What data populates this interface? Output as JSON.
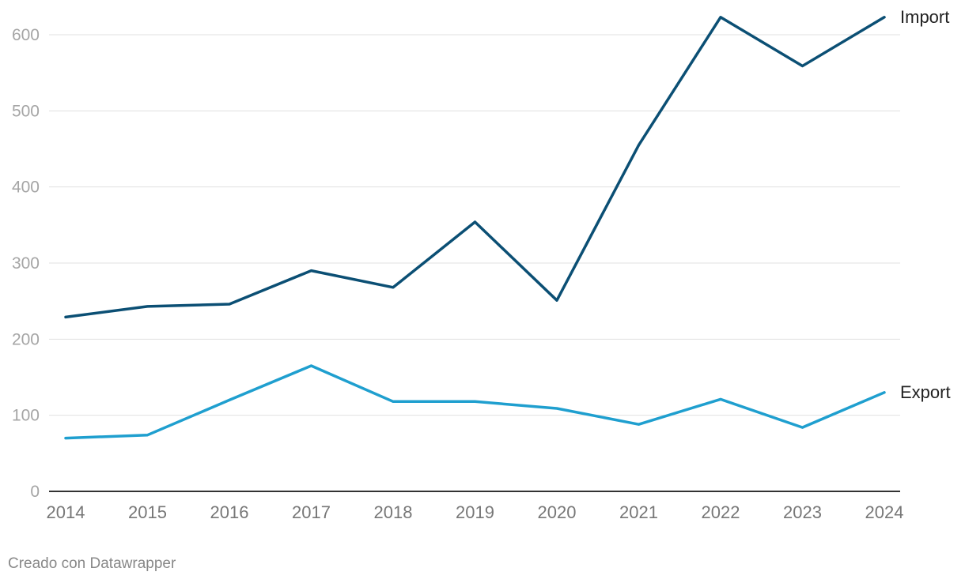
{
  "chart_data": {
    "type": "line",
    "x": [
      "2014",
      "2015",
      "2016",
      "2017",
      "2018",
      "2019",
      "2020",
      "2021",
      "2022",
      "2023",
      "2024"
    ],
    "series": [
      {
        "name": "Import",
        "color": "#0b4f74",
        "values": [
          229,
          243,
          246,
          290,
          268,
          354,
          251,
          455,
          623,
          559,
          623
        ]
      },
      {
        "name": "Export",
        "color": "#1f9fcf",
        "values": [
          70,
          74,
          120,
          165,
          118,
          118,
          109,
          88,
          121,
          84,
          130
        ]
      }
    ],
    "y_ticks": [
      "0",
      "100",
      "200",
      "300",
      "400",
      "500",
      "600"
    ],
    "ylim": [
      0,
      623
    ],
    "grid": true,
    "legend": "direct labels at line ends"
  },
  "footer": {
    "credit": "Creado con Datawrapper"
  }
}
